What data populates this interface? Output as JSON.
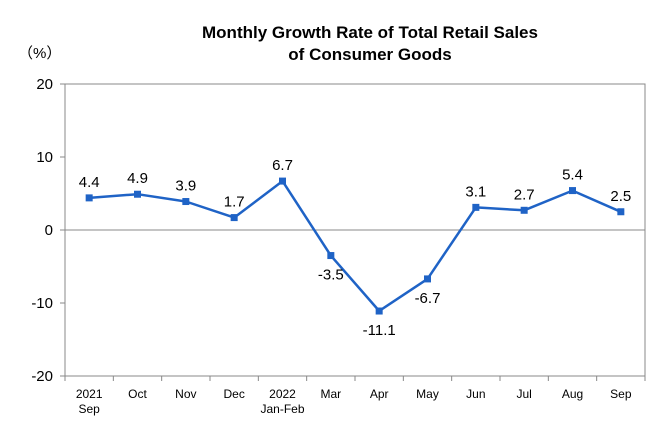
{
  "chart_data": {
    "type": "line",
    "title": [
      "Monthly Growth Rate of Total Retail Sales",
      "of Consumer Goods"
    ],
    "unit": "（%）",
    "xlabel": "",
    "ylabel": "",
    "ylim": [
      -20,
      20
    ],
    "yticks": [
      20,
      10,
      0,
      -10,
      -20
    ],
    "ytick_labels": [
      "20",
      "10",
      "0",
      "-10",
      "-20"
    ],
    "grid": false,
    "legend": "none",
    "categories": [
      [
        "2021",
        "Sep"
      ],
      [
        "Oct"
      ],
      [
        "Nov"
      ],
      [
        "Dec"
      ],
      [
        "2022",
        "Jan-Feb"
      ],
      [
        "Mar"
      ],
      [
        "Apr"
      ],
      [
        "May"
      ],
      [
        "Jun"
      ],
      [
        "Jul"
      ],
      [
        "Aug"
      ],
      [
        "Sep"
      ]
    ],
    "series": [
      {
        "values": [
          4.4,
          4.9,
          3.9,
          1.7,
          6.7,
          -3.5,
          -11.1,
          -6.7,
          3.1,
          2.7,
          5.4,
          2.5
        ],
        "labels": [
          "4.4",
          "4.9",
          "3.9",
          "1.7",
          "6.7",
          "-3.5",
          "-11.1",
          "-6.7",
          "3.1",
          "2.7",
          "5.4",
          "2.5"
        ],
        "label_position": [
          "above",
          "above",
          "above",
          "above",
          "above",
          "below",
          "below",
          "below",
          "above",
          "above",
          "above",
          "above"
        ],
        "color": "#1F63C6"
      }
    ],
    "axis_color": "#888888",
    "zero_line_color": "#888888"
  }
}
